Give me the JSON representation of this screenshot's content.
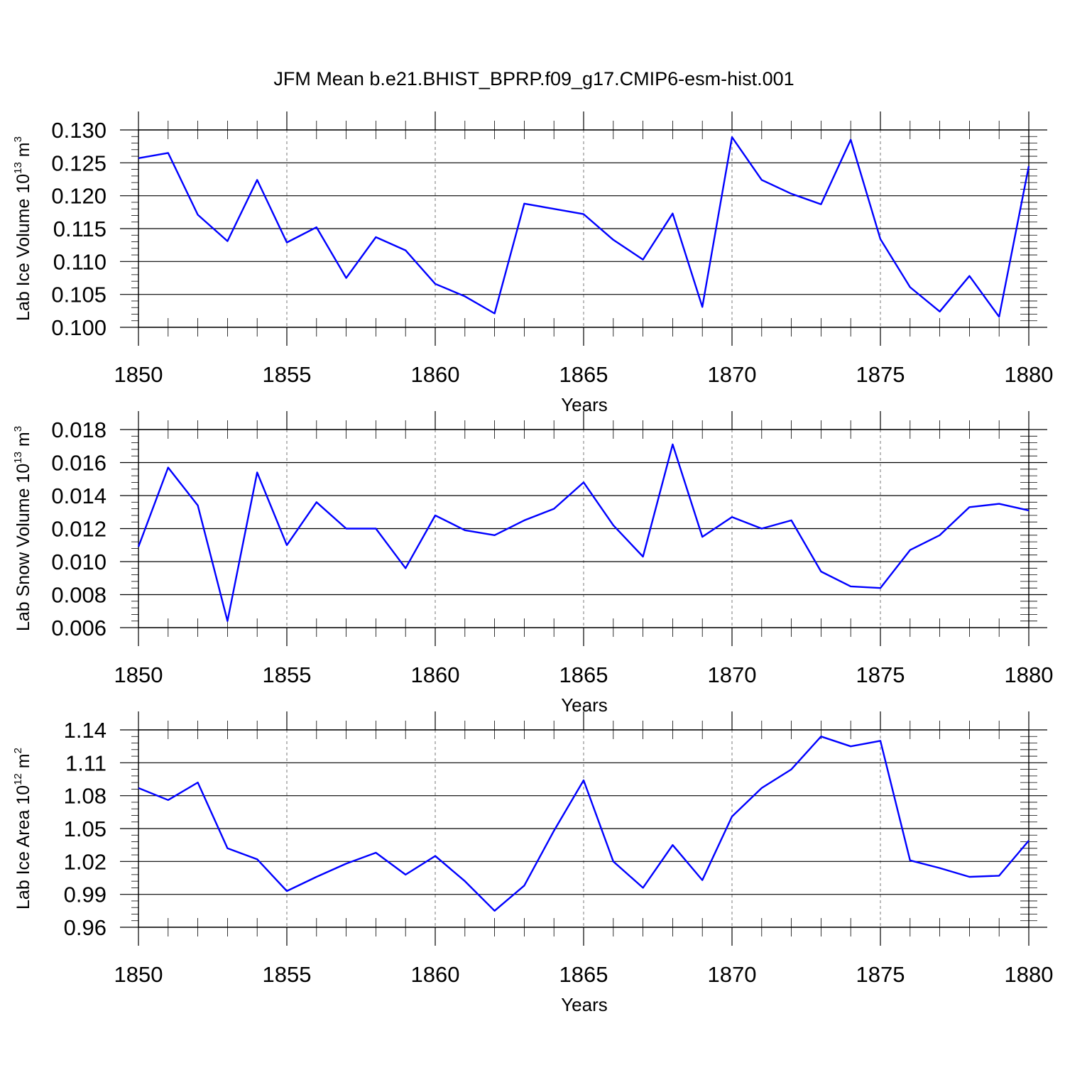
{
  "title": "JFM Mean b.e21.BHIST_BPRP.f09_g17.CMIP6-esm-hist.001",
  "chart_data": [
    {
      "type": "line",
      "ylabel": {
        "text": "Lab Ice Volume 10",
        "exponent": "13",
        "unit": "m",
        "unit_exponent": "3"
      },
      "xlabel": "Years",
      "xlim": [
        1850,
        1880
      ],
      "ylim": [
        0.1,
        0.13
      ],
      "yticks": [
        0.1,
        0.105,
        0.11,
        0.115,
        0.12,
        0.125,
        0.13
      ],
      "ytick_labels": [
        "0.100",
        "0.105",
        "0.110",
        "0.115",
        "0.120",
        "0.125",
        "0.130"
      ],
      "xticks": [
        1850,
        1855,
        1860,
        1865,
        1870,
        1875,
        1880
      ],
      "xtick_labels": [
        "1850",
        "1855",
        "1860",
        "1865",
        "1870",
        "1875",
        "1880"
      ],
      "grid": "vertical dashed at major x ticks",
      "color": "#0000ff",
      "series": [
        {
          "name": "Lab Ice Volume",
          "x": [
            1850,
            1851,
            1852,
            1853,
            1854,
            1855,
            1856,
            1857,
            1858,
            1859,
            1860,
            1861,
            1862,
            1863,
            1864,
            1865,
            1866,
            1867,
            1868,
            1869,
            1870,
            1871,
            1872,
            1873,
            1874,
            1875,
            1876,
            1877,
            1878,
            1879,
            1880
          ],
          "values": [
            0.1257,
            0.1265,
            0.1171,
            0.1131,
            0.1224,
            0.1129,
            0.1152,
            0.1075,
            0.1137,
            0.1117,
            0.1066,
            0.1047,
            0.1021,
            0.1188,
            0.118,
            0.1172,
            0.1133,
            0.1103,
            0.1173,
            0.1031,
            0.1289,
            0.1224,
            0.1203,
            0.1187,
            0.1285,
            0.1134,
            0.1061,
            0.1024,
            0.1078,
            0.1016,
            0.1245
          ]
        }
      ]
    },
    {
      "type": "line",
      "ylabel": {
        "text": "Lab Snow Volume 10",
        "exponent": "13",
        "unit": "m",
        "unit_exponent": "3"
      },
      "xlabel": "Years",
      "xlim": [
        1850,
        1880
      ],
      "ylim": [
        0.006,
        0.018
      ],
      "yticks": [
        0.006,
        0.008,
        0.01,
        0.012,
        0.014,
        0.016,
        0.018
      ],
      "ytick_labels": [
        "0.006",
        "0.008",
        "0.010",
        "0.012",
        "0.014",
        "0.016",
        "0.018"
      ],
      "xticks": [
        1850,
        1855,
        1860,
        1865,
        1870,
        1875,
        1880
      ],
      "xtick_labels": [
        "1850",
        "1855",
        "1860",
        "1865",
        "1870",
        "1875",
        "1880"
      ],
      "grid": "vertical dashed at major x ticks",
      "color": "#0000ff",
      "series": [
        {
          "name": "Lab Snow Volume",
          "x": [
            1850,
            1851,
            1852,
            1853,
            1854,
            1855,
            1856,
            1857,
            1858,
            1859,
            1860,
            1861,
            1862,
            1863,
            1864,
            1865,
            1866,
            1867,
            1868,
            1869,
            1870,
            1871,
            1872,
            1873,
            1874,
            1875,
            1876,
            1877,
            1878,
            1879,
            1880
          ],
          "values": [
            0.0109,
            0.0157,
            0.0134,
            0.0064,
            0.0154,
            0.011,
            0.0136,
            0.012,
            0.012,
            0.0096,
            0.0128,
            0.0119,
            0.0116,
            0.0125,
            0.0132,
            0.0148,
            0.0122,
            0.0103,
            0.0171,
            0.0115,
            0.0127,
            0.012,
            0.0125,
            0.0094,
            0.0085,
            0.0084,
            0.0107,
            0.0116,
            0.0133,
            0.0135,
            0.0131
          ]
        }
      ]
    },
    {
      "type": "line",
      "ylabel": {
        "text": "Lab Ice Area 10",
        "exponent": "12",
        "unit": "m",
        "unit_exponent": "2"
      },
      "xlabel": "Years",
      "xlim": [
        1850,
        1880
      ],
      "ylim": [
        0.96,
        1.14
      ],
      "yticks": [
        0.96,
        0.99,
        1.02,
        1.05,
        1.08,
        1.11,
        1.14
      ],
      "ytick_labels": [
        "0.96",
        "0.99",
        "1.02",
        "1.05",
        "1.08",
        "1.11",
        "1.14"
      ],
      "xticks": [
        1850,
        1855,
        1860,
        1865,
        1870,
        1875,
        1880
      ],
      "xtick_labels": [
        "1850",
        "1855",
        "1860",
        "1865",
        "1870",
        "1875",
        "1880"
      ],
      "grid": "vertical dashed at major x ticks",
      "color": "#0000ff",
      "series": [
        {
          "name": "Lab Ice Area",
          "x": [
            1850,
            1851,
            1852,
            1853,
            1854,
            1855,
            1856,
            1857,
            1858,
            1859,
            1860,
            1861,
            1862,
            1863,
            1864,
            1865,
            1866,
            1867,
            1868,
            1869,
            1870,
            1871,
            1872,
            1873,
            1874,
            1875,
            1876,
            1877,
            1878,
            1879,
            1880
          ],
          "values": [
            1.087,
            1.076,
            1.092,
            1.032,
            1.022,
            0.993,
            1.006,
            1.018,
            1.028,
            1.008,
            1.025,
            1.002,
            0.975,
            0.998,
            1.048,
            1.094,
            1.02,
            0.996,
            1.035,
            1.003,
            1.061,
            1.087,
            1.104,
            1.134,
            1.125,
            1.13,
            1.021,
            1.014,
            1.006,
            1.007,
            1.039
          ]
        }
      ]
    }
  ]
}
